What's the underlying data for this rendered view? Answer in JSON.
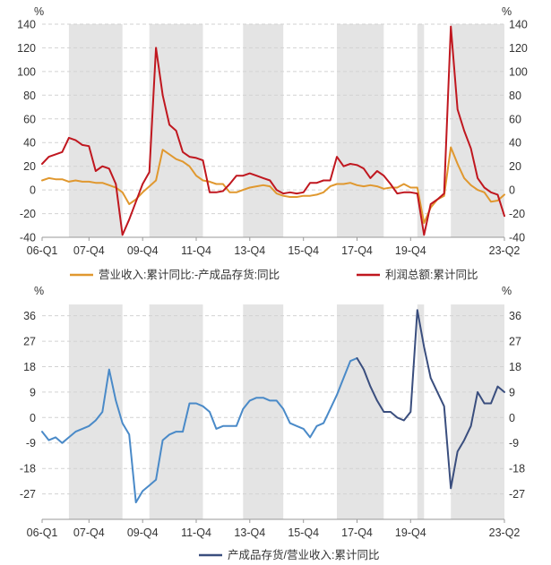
{
  "chart_data": [
    {
      "type": "line",
      "ylabel_left": "%",
      "ylabel_right": "%",
      "ylim": [
        -40,
        140
      ],
      "yticks": [
        -40,
        -20,
        0,
        20,
        40,
        60,
        80,
        100,
        120,
        140
      ],
      "x_tick_labels": [
        "06-Q1",
        "07-Q4",
        "09-Q4",
        "11-Q4",
        "13-Q4",
        "15-Q4",
        "17-Q4",
        "19-Q4",
        "23-Q2"
      ],
      "x_tick_positions": [
        0,
        7,
        15,
        23,
        31,
        39,
        47,
        55,
        69
      ],
      "grid": "horizontal-dashed",
      "shaded_recession_quarters": [
        [
          4,
          12
        ],
        [
          16,
          24
        ],
        [
          30,
          36
        ],
        [
          44,
          51
        ],
        [
          56,
          57
        ],
        [
          61,
          69
        ]
      ],
      "legend_position": "bottom",
      "series": [
        {
          "name": "营业收入:累计同比:-产成品存货:同比",
          "color": "#E0982F",
          "x": [
            0,
            1,
            2,
            3,
            4,
            5,
            6,
            7,
            8,
            9,
            10,
            11,
            12,
            13,
            14,
            15,
            16,
            17,
            18,
            19,
            20,
            21,
            22,
            23,
            24,
            25,
            26,
            27,
            28,
            29,
            30,
            31,
            32,
            33,
            34,
            35,
            36,
            37,
            38,
            39,
            40,
            41,
            42,
            43,
            44,
            45,
            46,
            47,
            48,
            49,
            50,
            51,
            52,
            53,
            54,
            55,
            56,
            57,
            58,
            59,
            60,
            61,
            62,
            63,
            64,
            65,
            66,
            67,
            68,
            69
          ],
          "y": [
            8,
            10,
            9,
            9,
            7,
            8,
            7,
            7,
            6,
            6,
            4,
            2,
            -2,
            -12,
            -8,
            -2,
            3,
            8,
            34,
            30,
            26,
            24,
            20,
            12,
            8,
            7,
            5,
            5,
            -2,
            -2,
            0,
            2,
            3,
            4,
            3,
            -3,
            -5,
            -6,
            -6,
            -5,
            -5,
            -4,
            -2,
            3,
            5,
            5,
            6,
            4,
            3,
            4,
            3,
            1,
            2,
            2,
            5,
            2,
            2,
            -28,
            -15,
            -8,
            -5,
            36,
            22,
            10,
            4,
            0,
            -2,
            -10,
            -9,
            -4
          ]
        },
        {
          "name": "利润总额:累计同比",
          "color": "#C0171F",
          "x": [
            0,
            1,
            2,
            3,
            4,
            5,
            6,
            7,
            8,
            9,
            10,
            11,
            12,
            13,
            14,
            15,
            16,
            17,
            18,
            19,
            20,
            21,
            22,
            23,
            24,
            25,
            26,
            27,
            28,
            29,
            30,
            31,
            32,
            33,
            34,
            35,
            36,
            37,
            38,
            39,
            40,
            41,
            42,
            43,
            44,
            45,
            46,
            47,
            48,
            49,
            50,
            51,
            52,
            53,
            54,
            55,
            56,
            57,
            58,
            59,
            60,
            61,
            62,
            63,
            64,
            65,
            66,
            67,
            68,
            69
          ],
          "y": [
            22,
            28,
            30,
            32,
            44,
            42,
            38,
            37,
            16,
            20,
            18,
            5,
            -38,
            -25,
            -10,
            5,
            15,
            120,
            80,
            55,
            50,
            32,
            28,
            27,
            25,
            -2,
            -2,
            -1,
            5,
            12,
            12,
            14,
            12,
            10,
            8,
            0,
            -3,
            -2,
            -3,
            -2,
            6,
            6,
            8,
            8,
            28,
            20,
            22,
            21,
            18,
            10,
            16,
            12,
            5,
            -3,
            -2,
            -2,
            -3,
            -38,
            -12,
            -8,
            -3,
            138,
            68,
            50,
            35,
            10,
            2,
            -2,
            -4,
            -22
          ]
        }
      ]
    },
    {
      "type": "line",
      "ylabel_left": "%",
      "ylabel_right": "%",
      "ylim": [
        -36,
        40
      ],
      "yticks": [
        -27,
        -18,
        -9,
        0,
        9,
        18,
        27,
        36
      ],
      "x_tick_labels": [
        "06-Q1",
        "07-Q4",
        "09-Q4",
        "11-Q4",
        "13-Q4",
        "15-Q4",
        "17-Q4",
        "19-Q4",
        "23-Q2"
      ],
      "x_tick_positions": [
        0,
        7,
        15,
        23,
        31,
        39,
        47,
        55,
        69
      ],
      "grid": "horizontal-dashed",
      "shaded_recession_quarters": [
        [
          4,
          12
        ],
        [
          16,
          24
        ],
        [
          30,
          36
        ],
        [
          44,
          51
        ],
        [
          56,
          57
        ],
        [
          61,
          69
        ]
      ],
      "legend_position": "bottom",
      "series": [
        {
          "name": "产成品存货/营业收入:累计同比",
          "color_segments": [
            {
              "range": [
                0,
                47
              ],
              "color": "#4A8AC8"
            },
            {
              "range": [
                47,
                69
              ],
              "color": "#3A4E7E"
            }
          ],
          "x": [
            0,
            1,
            2,
            3,
            4,
            5,
            6,
            7,
            8,
            9,
            10,
            11,
            12,
            13,
            14,
            15,
            16,
            17,
            18,
            19,
            20,
            21,
            22,
            23,
            24,
            25,
            26,
            27,
            28,
            29,
            30,
            31,
            32,
            33,
            34,
            35,
            36,
            37,
            38,
            39,
            40,
            41,
            42,
            43,
            44,
            45,
            46,
            47,
            48,
            49,
            50,
            51,
            52,
            53,
            54,
            55,
            56,
            57,
            58,
            59,
            60,
            61,
            62,
            63,
            64,
            65,
            66,
            67,
            68,
            69
          ],
          "y": [
            -5,
            -8,
            -7,
            -9,
            -7,
            -5,
            -4,
            -3,
            -1,
            2,
            17,
            6,
            -2,
            -6,
            -30,
            -26,
            -24,
            -22,
            -8,
            -6,
            -5,
            -5,
            5,
            5,
            4,
            2,
            -4,
            -3,
            -3,
            -3,
            3,
            6,
            7,
            7,
            6,
            6,
            3,
            -2,
            -3,
            -4,
            -7,
            -3,
            -2,
            3,
            8,
            14,
            20,
            21,
            17,
            11,
            6,
            2,
            2,
            0,
            -1,
            2,
            38,
            25,
            14,
            9,
            4,
            -25,
            -12,
            -8,
            -3,
            9,
            5,
            5,
            11,
            9
          ]
        }
      ]
    }
  ],
  "legend_top": {
    "item1": "营业收入:累计同比:-产成品存货:同比",
    "item2": "利润总额:累计同比"
  },
  "legend_bottom": {
    "item1": "产成品存货/营业收入:累计同比"
  },
  "colors": {
    "shade": "#E4E4E4",
    "grid": "#D2D2D2",
    "axis": "#999999",
    "text": "#333333"
  }
}
